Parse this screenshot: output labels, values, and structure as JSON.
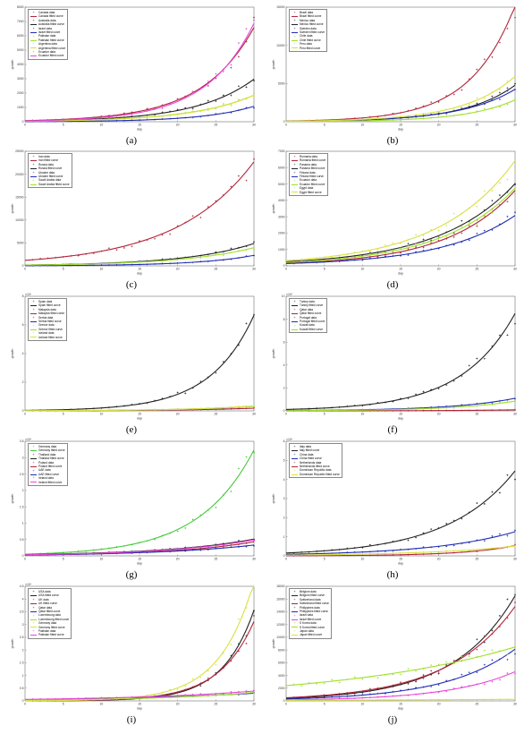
{
  "chart_data": [
    {
      "panel": "(a)",
      "type": "scatter",
      "xlabel": "day",
      "ylabel": "growth",
      "xlim": [
        0,
        30
      ],
      "ylim": [
        0,
        8000
      ],
      "exponent": "",
      "xticks": [
        0,
        5,
        10,
        15,
        20,
        25,
        30
      ],
      "yticks": [
        0,
        1000,
        2000,
        3000,
        4000,
        5000,
        6000,
        7000,
        8000
      ],
      "series": [
        {
          "name": "Canada",
          "color": "#b0243a",
          "y0": 80,
          "rate": 0.147
        },
        {
          "name": "Australia",
          "color": "#222222",
          "y0": 55,
          "rate": 0.133
        },
        {
          "name": "Israel",
          "color": "#1f2db3",
          "y0": 12,
          "rate": 0.15
        },
        {
          "name": "Pakistan",
          "color": "#9fe02a",
          "y0": 45,
          "rate": 0.124
        },
        {
          "name": "Argentina",
          "color": "#d9e040",
          "y0": 40,
          "rate": 0.128
        },
        {
          "name": "Ecuador",
          "color": "#e845d6",
          "y0": 60,
          "rate": 0.158
        }
      ],
      "legend": [
        "Canada data",
        "Canada fitted curve",
        "Australia data",
        "Australia fitted curve",
        "Israel data",
        "Israel fitted curve",
        "Pakistan data",
        "Pakistan fitted curve",
        "Argentina data",
        "Argentina fitted curve",
        "Ecuador data",
        "Ecuador fitted curve"
      ]
    },
    {
      "panel": "(b)",
      "type": "scatter",
      "xlabel": "day",
      "ylabel": "growth",
      "xlim": [
        0,
        30
      ],
      "ylim": [
        0,
        15000
      ],
      "exponent": "",
      "xticks": [
        0,
        5,
        10,
        15,
        20,
        25,
        30
      ],
      "yticks": [
        0,
        5000,
        10000,
        15000
      ],
      "series": [
        {
          "name": "Brazil",
          "color": "#b0243a",
          "y0": 90,
          "rate": 0.171
        },
        {
          "name": "Mexico",
          "color": "#222222",
          "y0": 50,
          "rate": 0.152
        },
        {
          "name": "Sweden",
          "color": "#1f2db3",
          "y0": 60,
          "rate": 0.142
        },
        {
          "name": "Chile",
          "color": "#9fe02a",
          "y0": 25,
          "rate": 0.158
        },
        {
          "name": "Peru",
          "color": "#d9e040",
          "y0": 70,
          "rate": 0.148
        }
      ],
      "legend": [
        "Brazil data",
        "Brazil fitted curve",
        "Mexico data",
        "Mexico fitted curve",
        "Sweden data",
        "Sweden fitted curve",
        "Chile data",
        "Chile fitted curve",
        "Peru data",
        "Peru fitted curve"
      ]
    },
    {
      "panel": "(c)",
      "type": "scatter",
      "xlabel": "day",
      "ylabel": "growth",
      "xlim": [
        0,
        30
      ],
      "ylim": [
        0,
        25000
      ],
      "exponent": "",
      "xticks": [
        0,
        5,
        10,
        15,
        20,
        25,
        30
      ],
      "yticks": [
        0,
        5000,
        10000,
        15000,
        20000,
        25000
      ],
      "series": [
        {
          "name": "Iran",
          "color": "#b0243a",
          "y0": 1200,
          "rate": 0.098
        },
        {
          "name": "Russia",
          "color": "#222222",
          "y0": 180,
          "rate": 0.11
        },
        {
          "name": "Ukraine",
          "color": "#1f2db3",
          "y0": 40,
          "rate": 0.135
        },
        {
          "name": "Saudi Arabia",
          "color": "#9fe02a",
          "y0": 170,
          "rate": 0.105
        }
      ],
      "legend": [
        "Iran data",
        "Iran fitted curve",
        "Russia data",
        "Russia fitted curve",
        "Ukraine data",
        "Ukraine fitted curve",
        "Saudi Arabia data",
        "Saudi Arabia fitted curve"
      ]
    },
    {
      "panel": "(d)",
      "type": "scatter",
      "xlabel": "day",
      "ylabel": "growth",
      "xlim": [
        0,
        30
      ],
      "ylim": [
        0,
        7000
      ],
      "exponent": "",
      "xticks": [
        0,
        5,
        10,
        15,
        20,
        25,
        30
      ],
      "yticks": [
        0,
        1000,
        2000,
        3000,
        4000,
        5000,
        6000,
        7000
      ],
      "series": [
        {
          "name": "Romania",
          "color": "#b0243a",
          "y0": 160,
          "rate": 0.112
        },
        {
          "name": "Panama",
          "color": "#222222",
          "y0": 250,
          "rate": 0.1
        },
        {
          "name": "Finland",
          "color": "#1f2db3",
          "y0": 140,
          "rate": 0.103
        },
        {
          "name": "Ecuador",
          "color": "#9fe02a",
          "y0": 210,
          "rate": 0.104
        },
        {
          "name": "Egypt",
          "color": "#d9e040",
          "y0": 320,
          "rate": 0.1
        }
      ],
      "legend": [
        "Romania data",
        "Romania fitted curve",
        "Panama data",
        "Panama fitted curve",
        "Finland data",
        "Finland fitted curve",
        "Ecuador data",
        "Ecuador fitted curve",
        "Egypt data",
        "Egypt fitted curve"
      ]
    },
    {
      "panel": "(e)",
      "type": "scatter",
      "xlabel": "day",
      "ylabel": "growth",
      "xlim": [
        0,
        30
      ],
      "ylim": [
        0,
        80000
      ],
      "exponent": "×10⁴",
      "xticks": [
        0,
        5,
        10,
        15,
        20,
        25,
        30
      ],
      "yticks": [
        0,
        20000,
        40000,
        60000,
        80000
      ],
      "series": [
        {
          "name": "Spain",
          "color": "#222222",
          "y0": 350,
          "rate": 0.175
        },
        {
          "name": "Malaysia",
          "color": "#b0243a",
          "y0": 80,
          "rate": 0.105
        },
        {
          "name": "Serbia",
          "color": "#1f2db3",
          "y0": 90,
          "rate": 0.12
        },
        {
          "name": "Greece",
          "color": "#9fe02a",
          "y0": 120,
          "rate": 0.11
        },
        {
          "name": "Iceland",
          "color": "#d9e040",
          "y0": 110,
          "rate": 0.115
        }
      ],
      "legend": [
        "Spain data",
        "Spain fitted curve",
        "Malaysia data",
        "Malaysia fitted curve",
        "Serbia data",
        "Serbia fitted curve",
        "Greece data",
        "Greece fitted curve",
        "Iceland data",
        "Iceland fitted curve"
      ]
    },
    {
      "panel": "(f)",
      "type": "scatter",
      "xlabel": "day",
      "ylabel": "growth",
      "xlim": [
        0,
        30
      ],
      "ylim": [
        0,
        100000
      ],
      "exponent": "×10⁴",
      "xticks": [
        0,
        5,
        10,
        15,
        20,
        25,
        30
      ],
      "yticks": [
        0,
        20000,
        40000,
        60000,
        80000,
        100000
      ],
      "series": [
        {
          "name": "Turkey",
          "color": "#222222",
          "y0": 1200,
          "rate": 0.142
        },
        {
          "name": "Qatar",
          "color": "#b0243a",
          "y0": 25,
          "rate": 0.12
        },
        {
          "name": "Portugal",
          "color": "#1f2db3",
          "y0": 300,
          "rate": 0.12
        },
        {
          "name": "Kuwait",
          "color": "#9fe02a",
          "y0": 200,
          "rate": 0.125
        }
      ],
      "legend": [
        "Turkey data",
        "Turkey fitted curve",
        "Qatar data",
        "Qatar fitted curve",
        "Portugal data",
        "Portugal fitted curve",
        "Kuwait data",
        "Kuwait fitted curve"
      ]
    },
    {
      "panel": "(g)",
      "type": "scatter",
      "xlabel": "day",
      "ylabel": "growth",
      "xlim": [
        0,
        30
      ],
      "ylim": [
        0,
        35000
      ],
      "exponent": "×10⁴",
      "xticks": [
        0,
        5,
        10,
        15,
        20,
        25,
        30
      ],
      "yticks": [
        0,
        5000,
        10000,
        15000,
        20000,
        25000,
        30000,
        35000
      ],
      "series": [
        {
          "name": "Germany",
          "color": "#47c93a",
          "y0": 500,
          "rate": 0.139
        },
        {
          "name": "Thailand",
          "color": "#222222",
          "y0": 400,
          "rate": 0.085
        },
        {
          "name": "Poland",
          "color": "#b0243a",
          "y0": 250,
          "rate": 0.095
        },
        {
          "name": "UAE",
          "color": "#1f2db3",
          "y0": 300,
          "rate": 0.08
        },
        {
          "name": "Ireland",
          "color": "#e845d6",
          "y0": 350,
          "rate": 0.088
        }
      ],
      "legend": [
        "Germany data",
        "Germany fitted curve",
        "Thailand data",
        "Thailand fitted curve",
        "Poland data",
        "Poland fitted curve",
        "UAE data",
        "UAE fitted curve",
        "Ireland data",
        "Ireland fitted curve"
      ]
    },
    {
      "panel": "(h)",
      "type": "scatter",
      "xlabel": "day",
      "ylabel": "growth",
      "xlim": [
        0,
        30
      ],
      "ylim": [
        0,
        60000
      ],
      "exponent": "×10⁴",
      "xticks": [
        0,
        5,
        10,
        15,
        20,
        25,
        30
      ],
      "yticks": [
        0,
        10000,
        20000,
        30000,
        40000,
        50000,
        60000
      ],
      "series": [
        {
          "name": "Italy",
          "color": "#222222",
          "y0": 1500,
          "rate": 0.113
        },
        {
          "name": "China",
          "color": "#1f2db3",
          "y0": 800,
          "rate": 0.092
        },
        {
          "name": "Netherlands",
          "color": "#b0243a",
          "y0": 60,
          "rate": 0.15
        },
        {
          "name": "Dominican Republic",
          "color": "#d9e040",
          "y0": 400,
          "rate": 0.085
        }
      ],
      "legend": [
        "Italy data",
        "Italy fitted curve",
        "China data",
        "China fitted curve",
        "Netherlands data",
        "Netherlands fitted curve",
        "Dominican Republic data",
        "Dominican Republic fitted curve"
      ]
    },
    {
      "panel": "(i)",
      "type": "scatter",
      "xlabel": "day",
      "ylabel": "growth",
      "xlim": [
        0,
        30
      ],
      "ylim": [
        0,
        45000
      ],
      "exponent": "×10⁴",
      "xticks": [
        0,
        5,
        10,
        15,
        20,
        25,
        30
      ],
      "yticks": [
        0,
        5000,
        10000,
        15000,
        20000,
        25000,
        30000,
        35000,
        40000,
        45000
      ],
      "series": [
        {
          "name": "USA",
          "color": "#222222",
          "y0": 25,
          "rate": 0.242
        },
        {
          "name": "UK",
          "color": "#b0243a",
          "y0": 45,
          "rate": 0.218
        },
        {
          "name": "Qatar",
          "color": "#1f2db3",
          "y0": 500,
          "rate": 0.06
        },
        {
          "name": "Luxembourg",
          "color": "#9fe02a",
          "y0": 300,
          "rate": 0.08
        },
        {
          "name": "Germany",
          "color": "#d9e040",
          "y0": 60,
          "rate": 0.222
        },
        {
          "name": "Pakistan",
          "color": "#e845d6",
          "y0": 600,
          "rate": 0.062
        }
      ],
      "legend": [
        "USA data",
        "USA fitted curve",
        "UK data",
        "UK fitted curve",
        "Qatar data",
        "Qatar fitted curve",
        "Luxembourg data",
        "Luxembourg fitted curve",
        "Germany data",
        "Germany fitted curve",
        "Pakistan data",
        "Pakistan fitted curve"
      ]
    },
    {
      "panel": "(j)",
      "type": "scatter",
      "xlabel": "day",
      "ylabel": "growth",
      "xlim": [
        0,
        30
      ],
      "ylim": [
        0,
        18000
      ],
      "exponent": "",
      "xticks": [
        0,
        5,
        10,
        15,
        20,
        25,
        30
      ],
      "yticks": [
        0,
        2000,
        4000,
        6000,
        8000,
        10000,
        12000,
        14000,
        16000,
        18000
      ],
      "series": [
        {
          "name": "Belgium",
          "color": "#222222",
          "y0": 400,
          "rate": 0.124
        },
        {
          "name": "Switzerland",
          "color": "#b0243a",
          "y0": 500,
          "rate": 0.113
        },
        {
          "name": "Philippines",
          "color": "#1f2db3",
          "y0": 300,
          "rate": 0.11
        },
        {
          "name": "Israel",
          "color": "#e845d6",
          "y0": 150,
          "rate": 0.114
        },
        {
          "name": "S Korea",
          "color": "#9fe02a",
          "y0": 2400,
          "rate": 0.042
        },
        {
          "name": "Japan",
          "color": "#d9e040",
          "y0": 100,
          "rate": 0.03
        }
      ],
      "legend": [
        "Belgium data",
        "Belgium fitted curve",
        "Switzerland data",
        "Switzerland fitted curve",
        "Philippines data",
        "Philippines fitted curve",
        "Israel data",
        "Israel fitted curve",
        "S Korea data",
        "S Korea fitted curve",
        "Japan data",
        "Japan fitted curve"
      ]
    }
  ]
}
